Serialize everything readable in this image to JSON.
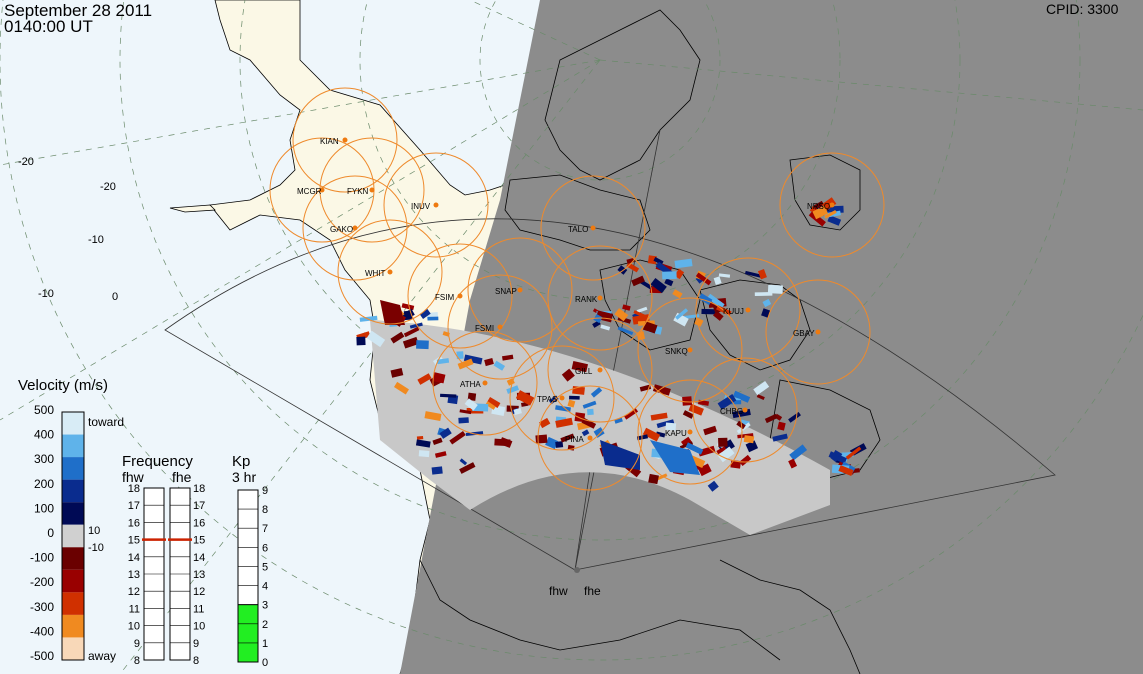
{
  "header": {
    "date": "September 28 2011",
    "time": "0140:00 UT",
    "cpid": "CPID: 3300"
  },
  "stations": [
    "KIAN",
    "MCGR",
    "FYKN",
    "INUV",
    "GAKO",
    "TALO",
    "NRSQ",
    "WHIT",
    "FSIM",
    "SNAP",
    "RANK",
    "KUUJ",
    "FSMI",
    "GBAY",
    "SNKQ",
    "GILL",
    "ATHA",
    "TPAS",
    "CHBG",
    "KAPU",
    "PINA"
  ],
  "radars": [
    "fhw",
    "fhe"
  ],
  "velocity_scale": {
    "title": "Velocity (m/s)",
    "ticks": [
      "500",
      "400",
      "300",
      "200",
      "100",
      "0",
      "-100",
      "-200",
      "-300",
      "-400",
      "-500"
    ],
    "toward": "toward",
    "away": "away",
    "threshold_pos": "10",
    "threshold_neg": "-10",
    "colors": [
      "#d8ecf6",
      "#5fb3ea",
      "#1f6fc9",
      "#0a2c8e",
      "#000a55",
      "#d0d0d0",
      "#6a0000",
      "#990000",
      "#d03000",
      "#f08a20",
      "#f8d8b8"
    ]
  },
  "frequency_scale": {
    "title": "Frequency",
    "left_label": "fhw",
    "right_label": "fhe",
    "ticks": [
      "18",
      "17",
      "16",
      "15",
      "14",
      "13",
      "12",
      "11",
      "10",
      "9",
      "8"
    ],
    "fhw_value_mhz": 15,
    "fhe_value_mhz": 15
  },
  "kp_scale": {
    "title": "Kp",
    "subtitle": "3 hr",
    "ticks": [
      "9",
      "8",
      "7",
      "6",
      "5",
      "4",
      "3",
      "2",
      "1",
      "0"
    ],
    "value": 3,
    "bar_color": "#22ee22"
  },
  "colors": {
    "ocean": "#eef6fb",
    "land": "#fbf8e6",
    "night": "#8c8c8c",
    "fov_circle": "#ee8a2c",
    "grid": "#6a8a6a"
  }
}
